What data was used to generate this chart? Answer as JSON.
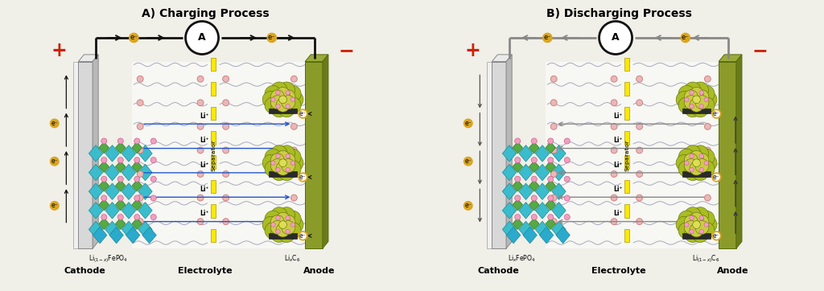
{
  "title_left": "A) Charging Process",
  "title_right": "B) Discharging Process",
  "bg_color": "#f0efe8",
  "crystal_teal": "#3BBCCC",
  "crystal_dark_teal": "#1A8A9A",
  "crystal_teal2": "#2AAACC",
  "crystal_green": "#55AA44",
  "crystal_dark_green": "#2A7A2A",
  "crystal_white": "#e8f8f8",
  "anode_front": "#8B9B2A",
  "anode_top": "#9AAA3A",
  "anode_side": "#6B7B1A",
  "anode_edge": "#556B0A",
  "cathode_front": "#d8d8d8",
  "cathode_top": "#eaeaea",
  "cathode_side": "#b8b8b8",
  "cathode_edge": "#888888",
  "cathode_white": "#f0f0f0",
  "separator_color": "#FFE800",
  "separator_edge": "#AA9900",
  "li_arrow_charge": "#2255CC",
  "li_arrow_discharge": "#888888",
  "wave_color": "#8888aa",
  "ion_fc": "#e8b8b8",
  "ion_ec": "#cc7777",
  "circuit_color": "#111111",
  "discharge_circuit": "#888888",
  "plus_color": "#CC2200",
  "minus_color": "#CC2200",
  "electron_fill": "#DAA520",
  "electron_circle_fill": "#ffffff",
  "graphite_main": "#AABC22",
  "graphite_light": "#CCCC44",
  "graphite_edge": "#556B0A",
  "graphite_base": "#2a2a2a",
  "pink_fc": "#f0a0c0",
  "pink_ec": "#cc6090",
  "font_title": 10,
  "font_label": 8,
  "font_small": 6,
  "label_cathode_charge": "Li$_{(1-x)}$FePO$_4$",
  "label_anode_charge": "Li$_x$C$_6$",
  "label_cathode_discharge": "Li$_x$FePO$_4$",
  "label_anode_discharge": "Li$_{(1-x)}$C$_6$",
  "label_electrolyte": "Electrolyte",
  "label_cathode": "Cathode",
  "label_anode": "Anode",
  "label_separator": "Separator"
}
